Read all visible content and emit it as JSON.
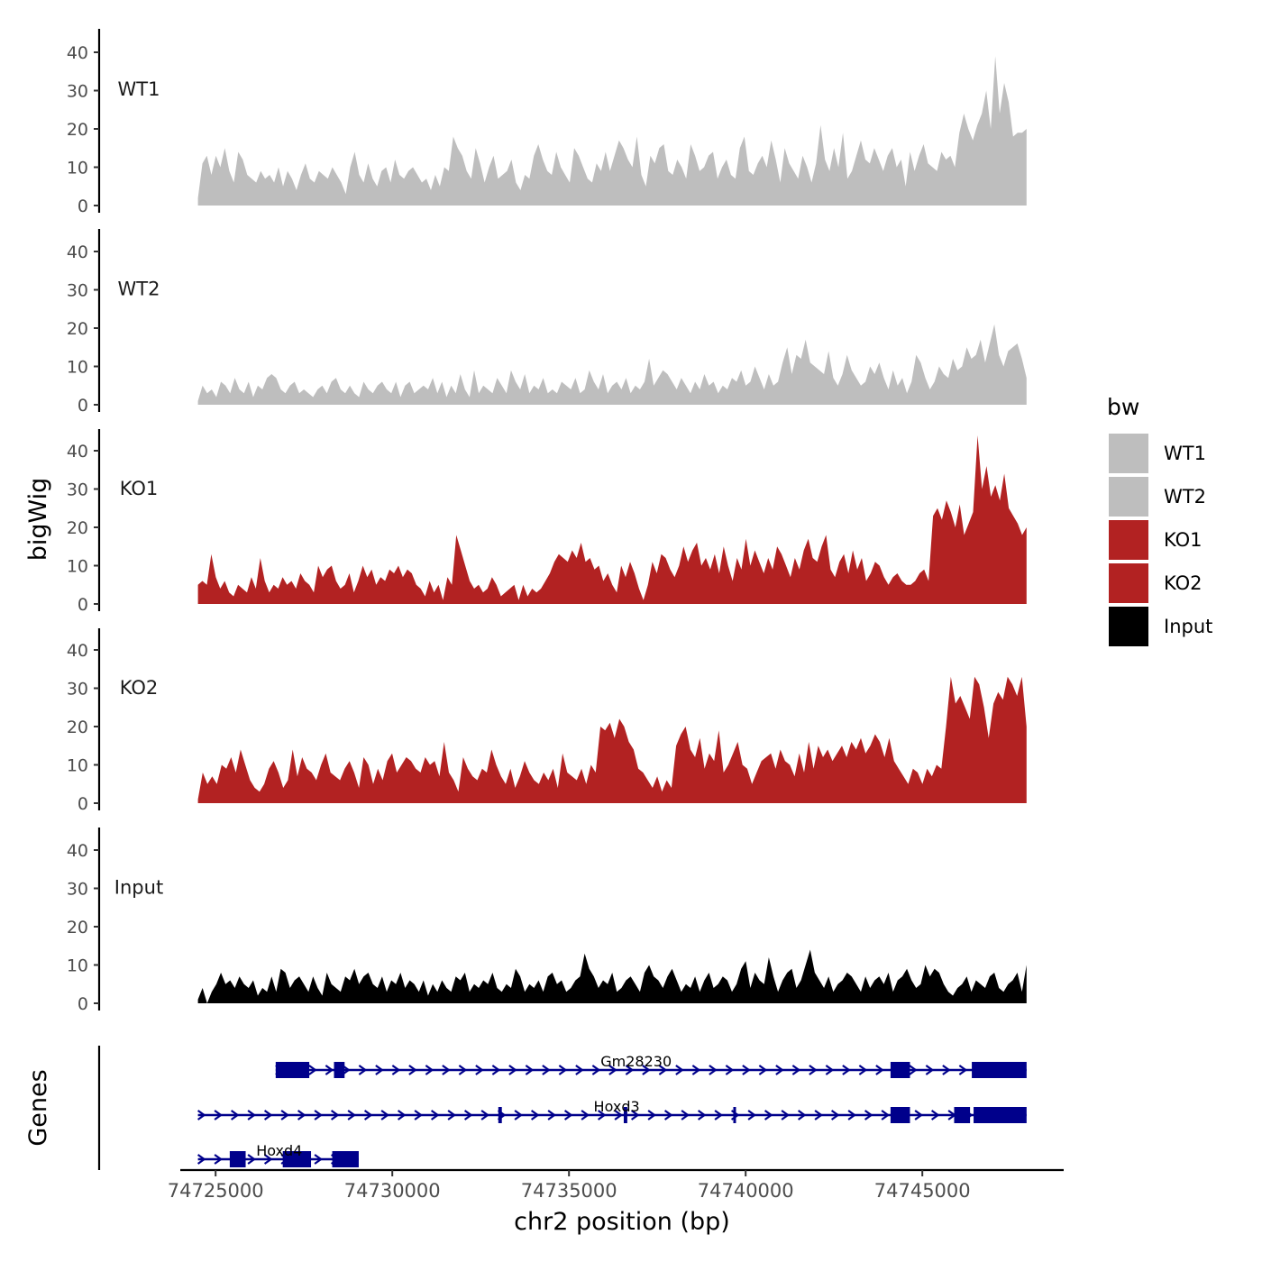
{
  "chart_data": {
    "type": "area",
    "y_axis_title": "bigWig",
    "genes_axis_title": "Genes",
    "x_axis_title": "chr2 position (bp)",
    "x_ticks": [
      74725000,
      74730000,
      74735000,
      74740000,
      74745000
    ],
    "x_tick_labels": [
      "74725000",
      "74730000",
      "74735000",
      "74740000",
      "74745000"
    ],
    "x_range": [
      74724000,
      74749000
    ],
    "y_range": [
      0,
      46
    ],
    "y_ticks": [
      0,
      10,
      20,
      30,
      40
    ],
    "y_tick_labels": [
      "0",
      "10",
      "20",
      "30",
      "40"
    ],
    "data_x_start": 74724500,
    "data_x_end": 74747950,
    "tracks": [
      {
        "name": "WT1",
        "label": "WT1",
        "color": "#BEBEBE",
        "values": [
          2,
          11,
          13,
          8,
          13,
          10,
          15,
          9,
          6,
          14,
          12,
          8,
          7,
          6,
          9,
          7,
          8,
          6,
          10,
          5,
          9,
          7,
          4,
          8,
          11,
          7,
          6,
          9,
          8,
          7,
          10,
          8,
          6,
          3,
          10,
          14,
          8,
          6,
          11,
          7,
          5,
          9,
          10,
          6,
          12,
          8,
          7,
          9,
          10,
          8,
          6,
          7,
          4,
          8,
          5,
          10,
          9,
          18,
          15,
          13,
          9,
          7,
          15,
          11,
          6,
          10,
          13,
          7,
          8,
          9,
          12,
          6,
          4,
          8,
          7,
          13,
          16,
          12,
          9,
          8,
          14,
          10,
          8,
          6,
          15,
          13,
          10,
          7,
          6,
          11,
          9,
          14,
          9,
          13,
          17,
          15,
          12,
          10,
          18,
          8,
          5,
          13,
          11,
          15,
          16,
          9,
          8,
          12,
          10,
          7,
          16,
          13,
          9,
          10,
          13,
          14,
          7,
          10,
          12,
          8,
          7,
          15,
          18,
          9,
          8,
          11,
          13,
          10,
          17,
          12,
          6,
          15,
          11,
          9,
          7,
          13,
          10,
          6,
          11,
          21,
          12,
          9,
          15,
          10,
          19,
          7,
          9,
          13,
          17,
          12,
          11,
          15,
          12,
          9,
          13,
          15,
          10,
          12,
          5,
          14,
          9,
          13,
          16,
          11,
          10,
          9,
          14,
          12,
          13,
          10,
          19,
          24,
          20,
          17,
          21,
          24,
          30,
          20,
          39,
          24,
          32,
          27,
          18,
          19,
          19,
          20
        ]
      },
      {
        "name": "WT2",
        "label": "WT2",
        "color": "#BEBEBE",
        "values": [
          1,
          5,
          3,
          4,
          2,
          6,
          5,
          3,
          7,
          4,
          3,
          6,
          2,
          5,
          4,
          7,
          8,
          7,
          4,
          3,
          5,
          6,
          3,
          4,
          3,
          2,
          4,
          5,
          3,
          6,
          7,
          4,
          3,
          5,
          3,
          2,
          6,
          4,
          3,
          5,
          6,
          4,
          3,
          6,
          2,
          5,
          6,
          3,
          4,
          5,
          4,
          7,
          3,
          6,
          2,
          5,
          3,
          8,
          4,
          2,
          9,
          3,
          5,
          4,
          3,
          7,
          5,
          3,
          9,
          6,
          4,
          8,
          3,
          5,
          4,
          7,
          3,
          4,
          3,
          6,
          5,
          4,
          7,
          3,
          4,
          9,
          6,
          4,
          8,
          3,
          5,
          6,
          4,
          7,
          3,
          5,
          4,
          6,
          12,
          5,
          7,
          9,
          8,
          6,
          4,
          7,
          5,
          3,
          6,
          4,
          8,
          5,
          6,
          3,
          5,
          4,
          7,
          6,
          9,
          5,
          6,
          10,
          7,
          4,
          8,
          5,
          6,
          11,
          15,
          8,
          13,
          12,
          17,
          11,
          10,
          9,
          8,
          14,
          7,
          5,
          8,
          13,
          9,
          7,
          5,
          6,
          10,
          8,
          11,
          7,
          4,
          9,
          5,
          7,
          3,
          6,
          13,
          11,
          7,
          4,
          6,
          10,
          8,
          7,
          12,
          9,
          10,
          15,
          12,
          13,
          17,
          11,
          16,
          21,
          13,
          10,
          14,
          15,
          16,
          12,
          7
        ]
      },
      {
        "name": "KO1",
        "label": "KO1",
        "color": "#B22222",
        "values": [
          5,
          6,
          5,
          13,
          7,
          4,
          6,
          3,
          2,
          5,
          4,
          3,
          7,
          4,
          12,
          6,
          3,
          5,
          4,
          7,
          5,
          6,
          4,
          8,
          6,
          5,
          3,
          10,
          7,
          9,
          10,
          6,
          4,
          5,
          8,
          3,
          6,
          10,
          7,
          9,
          5,
          7,
          6,
          9,
          8,
          10,
          7,
          9,
          8,
          5,
          4,
          2,
          6,
          3,
          5,
          1,
          7,
          5,
          18,
          14,
          10,
          6,
          4,
          5,
          3,
          4,
          7,
          5,
          2,
          3,
          4,
          5,
          1,
          5,
          2,
          4,
          3,
          4,
          6,
          8,
          11,
          13,
          12,
          11,
          14,
          12,
          16,
          11,
          12,
          9,
          10,
          6,
          8,
          5,
          3,
          10,
          7,
          11,
          8,
          4,
          1,
          5,
          11,
          8,
          13,
          12,
          9,
          7,
          10,
          15,
          11,
          14,
          16,
          10,
          12,
          9,
          13,
          8,
          15,
          10,
          6,
          12,
          9,
          17,
          10,
          14,
          11,
          8,
          12,
          9,
          15,
          13,
          10,
          7,
          12,
          9,
          14,
          17,
          12,
          11,
          15,
          18,
          9,
          7,
          11,
          13,
          8,
          14,
          9,
          12,
          6,
          8,
          11,
          10,
          7,
          5,
          7,
          8,
          6,
          5,
          5,
          6,
          8,
          9,
          6,
          23,
          25,
          22,
          27,
          24,
          20,
          26,
          18,
          21,
          24,
          44,
          30,
          36,
          28,
          31,
          27,
          34,
          25,
          23,
          21,
          18,
          20
        ]
      },
      {
        "name": "KO2",
        "label": "KO2",
        "color": "#B22222",
        "values": [
          1,
          8,
          5,
          7,
          5,
          10,
          9,
          12,
          8,
          14,
          10,
          6,
          4,
          3,
          5,
          9,
          11,
          8,
          4,
          6,
          14,
          7,
          12,
          9,
          8,
          6,
          10,
          13,
          8,
          7,
          6,
          9,
          11,
          8,
          4,
          12,
          10,
          5,
          9,
          6,
          11,
          13,
          8,
          10,
          12,
          11,
          9,
          8,
          12,
          10,
          11,
          7,
          16,
          8,
          6,
          3,
          12,
          9,
          7,
          6,
          9,
          8,
          14,
          10,
          7,
          5,
          9,
          4,
          7,
          11,
          8,
          6,
          5,
          8,
          6,
          9,
          4,
          13,
          8,
          7,
          6,
          9,
          5,
          10,
          8,
          20,
          19,
          21,
          17,
          22,
          20,
          16,
          14,
          9,
          8,
          6,
          4,
          7,
          3,
          6,
          4,
          15,
          18,
          20,
          14,
          12,
          17,
          9,
          13,
          11,
          19,
          8,
          10,
          13,
          16,
          10,
          9,
          5,
          8,
          11,
          12,
          13,
          9,
          14,
          11,
          10,
          7,
          13,
          8,
          16,
          9,
          15,
          12,
          14,
          11,
          13,
          15,
          12,
          16,
          14,
          17,
          13,
          15,
          18,
          16,
          12,
          17,
          11,
          9,
          7,
          5,
          9,
          8,
          5,
          9,
          7,
          10,
          9,
          20,
          33,
          26,
          28,
          25,
          22,
          33,
          31,
          25,
          17,
          26,
          29,
          27,
          33,
          31,
          28,
          33,
          20
        ]
      },
      {
        "name": "Input",
        "label": "Input",
        "color": "#000000",
        "values": [
          1,
          4,
          0,
          3,
          5,
          8,
          5,
          6,
          4,
          7,
          5,
          4,
          6,
          2,
          4,
          3,
          7,
          3,
          9,
          8,
          4,
          6,
          7,
          5,
          3,
          7,
          4,
          2,
          8,
          5,
          4,
          3,
          7,
          6,
          9,
          5,
          7,
          8,
          5,
          4,
          7,
          3,
          6,
          5,
          8,
          4,
          6,
          5,
          3,
          6,
          2,
          5,
          3,
          6,
          4,
          3,
          7,
          6,
          8,
          3,
          5,
          4,
          6,
          5,
          8,
          4,
          3,
          5,
          4,
          9,
          7,
          3,
          5,
          4,
          6,
          3,
          7,
          8,
          5,
          6,
          3,
          4,
          6,
          7,
          13,
          9,
          7,
          4,
          6,
          5,
          8,
          3,
          4,
          6,
          7,
          5,
          3,
          8,
          10,
          7,
          6,
          4,
          7,
          9,
          6,
          3,
          5,
          4,
          7,
          3,
          6,
          8,
          4,
          5,
          7,
          6,
          3,
          5,
          9,
          11,
          4,
          8,
          6,
          5,
          12,
          7,
          3,
          6,
          8,
          9,
          4,
          6,
          10,
          14,
          8,
          6,
          4,
          7,
          3,
          5,
          6,
          8,
          7,
          5,
          3,
          7,
          4,
          6,
          7,
          5,
          8,
          3,
          6,
          7,
          9,
          6,
          4,
          5,
          10,
          7,
          9,
          8,
          5,
          3,
          2,
          4,
          5,
          7,
          3,
          6,
          5,
          4,
          7,
          8,
          4,
          3,
          5,
          6,
          8,
          3,
          10
        ]
      }
    ],
    "genes": [
      {
        "name": "Gm28230",
        "row": 0,
        "start": 74726700,
        "end": 74747950,
        "exons": [
          [
            74726700,
            74727650
          ],
          [
            74728350,
            74728650
          ],
          [
            74744100,
            74744650
          ],
          [
            74746400,
            74747950
          ]
        ],
        "label_x": 74736900
      },
      {
        "name": "Hoxd3",
        "row": 1,
        "start": 74724500,
        "end": 74747950,
        "exons": [
          [
            74733000,
            74733100
          ],
          [
            74736550,
            74736650
          ],
          [
            74739650,
            74739700
          ],
          [
            74744100,
            74744650
          ],
          [
            74745900,
            74746350
          ],
          [
            74746450,
            74747950
          ]
        ],
        "label_x": 74736350
      },
      {
        "name": "Hoxd4",
        "row": 2,
        "start": 74724500,
        "end": 74729050,
        "exons": [
          [
            74725400,
            74725850
          ],
          [
            74726900,
            74727700
          ],
          [
            74728300,
            74729050
          ]
        ],
        "label_x": 74726800
      }
    ],
    "legend": {
      "title": "bw",
      "position": "right",
      "entries": [
        {
          "label": "WT1",
          "color": "#BEBEBE"
        },
        {
          "label": "WT2",
          "color": "#BEBEBE"
        },
        {
          "label": "KO1",
          "color": "#B22222"
        },
        {
          "label": "KO2",
          "color": "#B22222"
        },
        {
          "label": "Input",
          "color": "#000000"
        }
      ]
    },
    "gene_color": "#00008B"
  }
}
